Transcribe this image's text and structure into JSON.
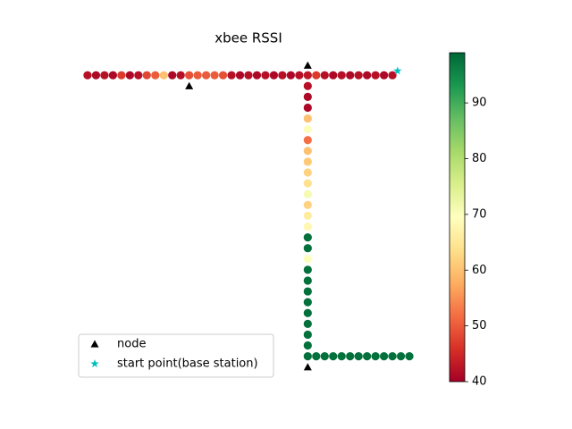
{
  "chart_data": {
    "type": "scatter",
    "title": "xbee RSSI",
    "xlim": [
      -2,
      40
    ],
    "ylim": [
      -30,
      2
    ],
    "series": [
      {
        "x": [
          0,
          1,
          2,
          3,
          4,
          5,
          6,
          7,
          8,
          9,
          10,
          11,
          12,
          13,
          14,
          15,
          16,
          17,
          18,
          19,
          20,
          21,
          22,
          23,
          24,
          25,
          26,
          27,
          28,
          29,
          30,
          31,
          32,
          33,
          34,
          35,
          36,
          26,
          26,
          26,
          26,
          26,
          26,
          26,
          26,
          26,
          26,
          26,
          26,
          26,
          26,
          26,
          26,
          26,
          26,
          26,
          26,
          26,
          26,
          26,
          26,
          26,
          26,
          27,
          28,
          29,
          30,
          31,
          32,
          33,
          34,
          35,
          36,
          37,
          38
        ],
        "y": [
          0,
          0,
          0,
          0,
          0,
          0,
          0,
          0,
          0,
          0,
          0,
          0,
          0,
          0,
          0,
          0,
          0,
          0,
          0,
          0,
          0,
          0,
          0,
          0,
          0,
          0,
          0,
          0,
          0,
          0,
          0,
          0,
          0,
          0,
          0,
          0,
          0,
          -1,
          -2,
          -3,
          -4,
          -5,
          -6,
          -7,
          -8,
          -9,
          -10,
          -11,
          -12,
          -13,
          -14,
          -15,
          -16,
          -17,
          -18,
          -19,
          -20,
          -21,
          -22,
          -23,
          -24,
          -25,
          -26,
          -26,
          -26,
          -26,
          -26,
          -26,
          -26,
          -26,
          -26,
          -26,
          -26,
          -26,
          -26
        ],
        "values": [
          42,
          41,
          42,
          41,
          47,
          41,
          42,
          48,
          50,
          60,
          41,
          42,
          49,
          50,
          50,
          50,
          49,
          42,
          41,
          42,
          41,
          42,
          41,
          42,
          41,
          42,
          43,
          47,
          42,
          41,
          42,
          41,
          42,
          41,
          42,
          41,
          42,
          42,
          41,
          41,
          60,
          70,
          52,
          60,
          61,
          62,
          64,
          71,
          62,
          66,
          68,
          98,
          98,
          70,
          98,
          98,
          98,
          98,
          98,
          98,
          98,
          98,
          98,
          98,
          98,
          98,
          98,
          98,
          98,
          98,
          98,
          98,
          98,
          98,
          98
        ]
      },
      {
        "name": "node",
        "marker": "triangle",
        "color": "#000000",
        "x": [
          12,
          26,
          26
        ],
        "y": [
          -1,
          0.9,
          -27
        ]
      },
      {
        "name": "start point(base station)",
        "marker": "star",
        "color": "#00bfbf",
        "x": [
          36.6
        ],
        "y": [
          0.4
        ]
      }
    ],
    "colormap": [
      "#a50026",
      "#d73027",
      "#f46d43",
      "#fdae61",
      "#fee08b",
      "#ffffbf",
      "#d9ef8b",
      "#a6d96a",
      "#66bd63",
      "#1a9850",
      "#006837"
    ],
    "clim": [
      40,
      99
    ],
    "cticks": [
      40,
      50,
      60,
      70,
      80,
      90
    ],
    "legend": "lower left"
  }
}
